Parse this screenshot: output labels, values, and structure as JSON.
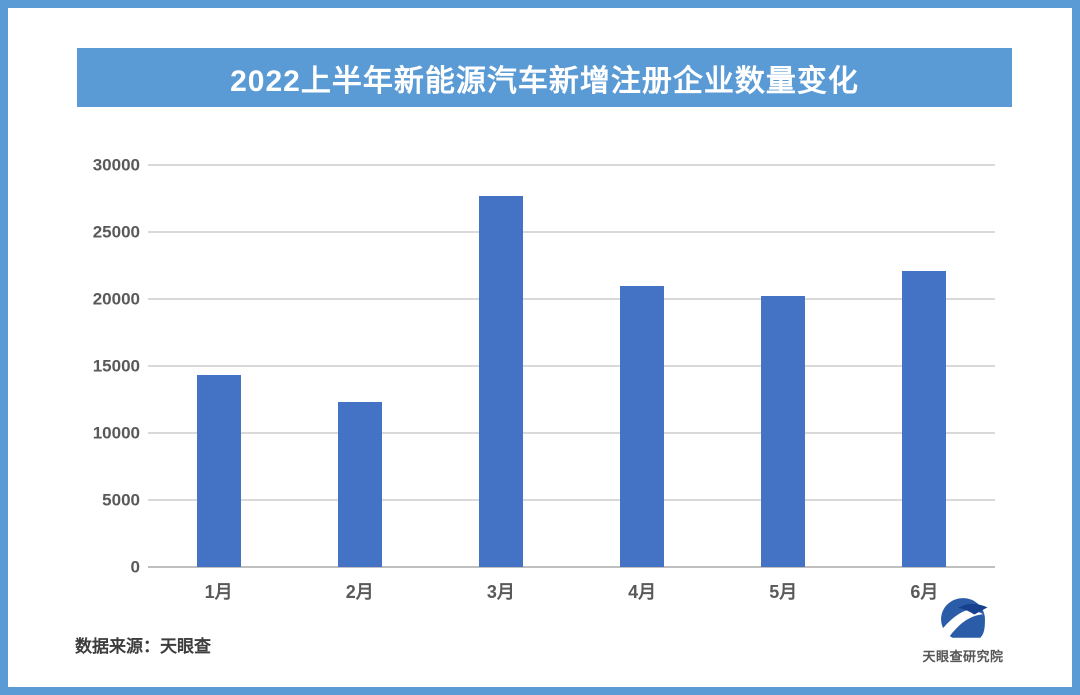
{
  "frame": {
    "border_color": "#5B9BD5",
    "background_color": "#FFFFFF"
  },
  "title": {
    "text": "2022上半年新能源汽车新增注册企业数量变化",
    "background_color": "#5B9BD5",
    "text_color": "#FFFFFF"
  },
  "chart_data": {
    "type": "bar",
    "title": "2022上半年新能源汽车新增注册企业数量变化",
    "categories": [
      "1月",
      "2月",
      "3月",
      "4月",
      "5月",
      "6月"
    ],
    "values": [
      14300,
      12300,
      27700,
      21000,
      20200,
      22100
    ],
    "xlabel": "",
    "ylabel": "",
    "ylim": [
      0,
      30000
    ],
    "yticks": [
      0,
      5000,
      10000,
      15000,
      20000,
      25000,
      30000
    ],
    "bar_color": "#4472C4",
    "gridline_color": "#D9D9D9",
    "axis_label_color": "#595959",
    "grid": true,
    "legend": false
  },
  "footer": {
    "source_label": "数据来源：天眼查",
    "logo_caption": "天眼查研究院",
    "logo_color": "#2B5CA8"
  }
}
